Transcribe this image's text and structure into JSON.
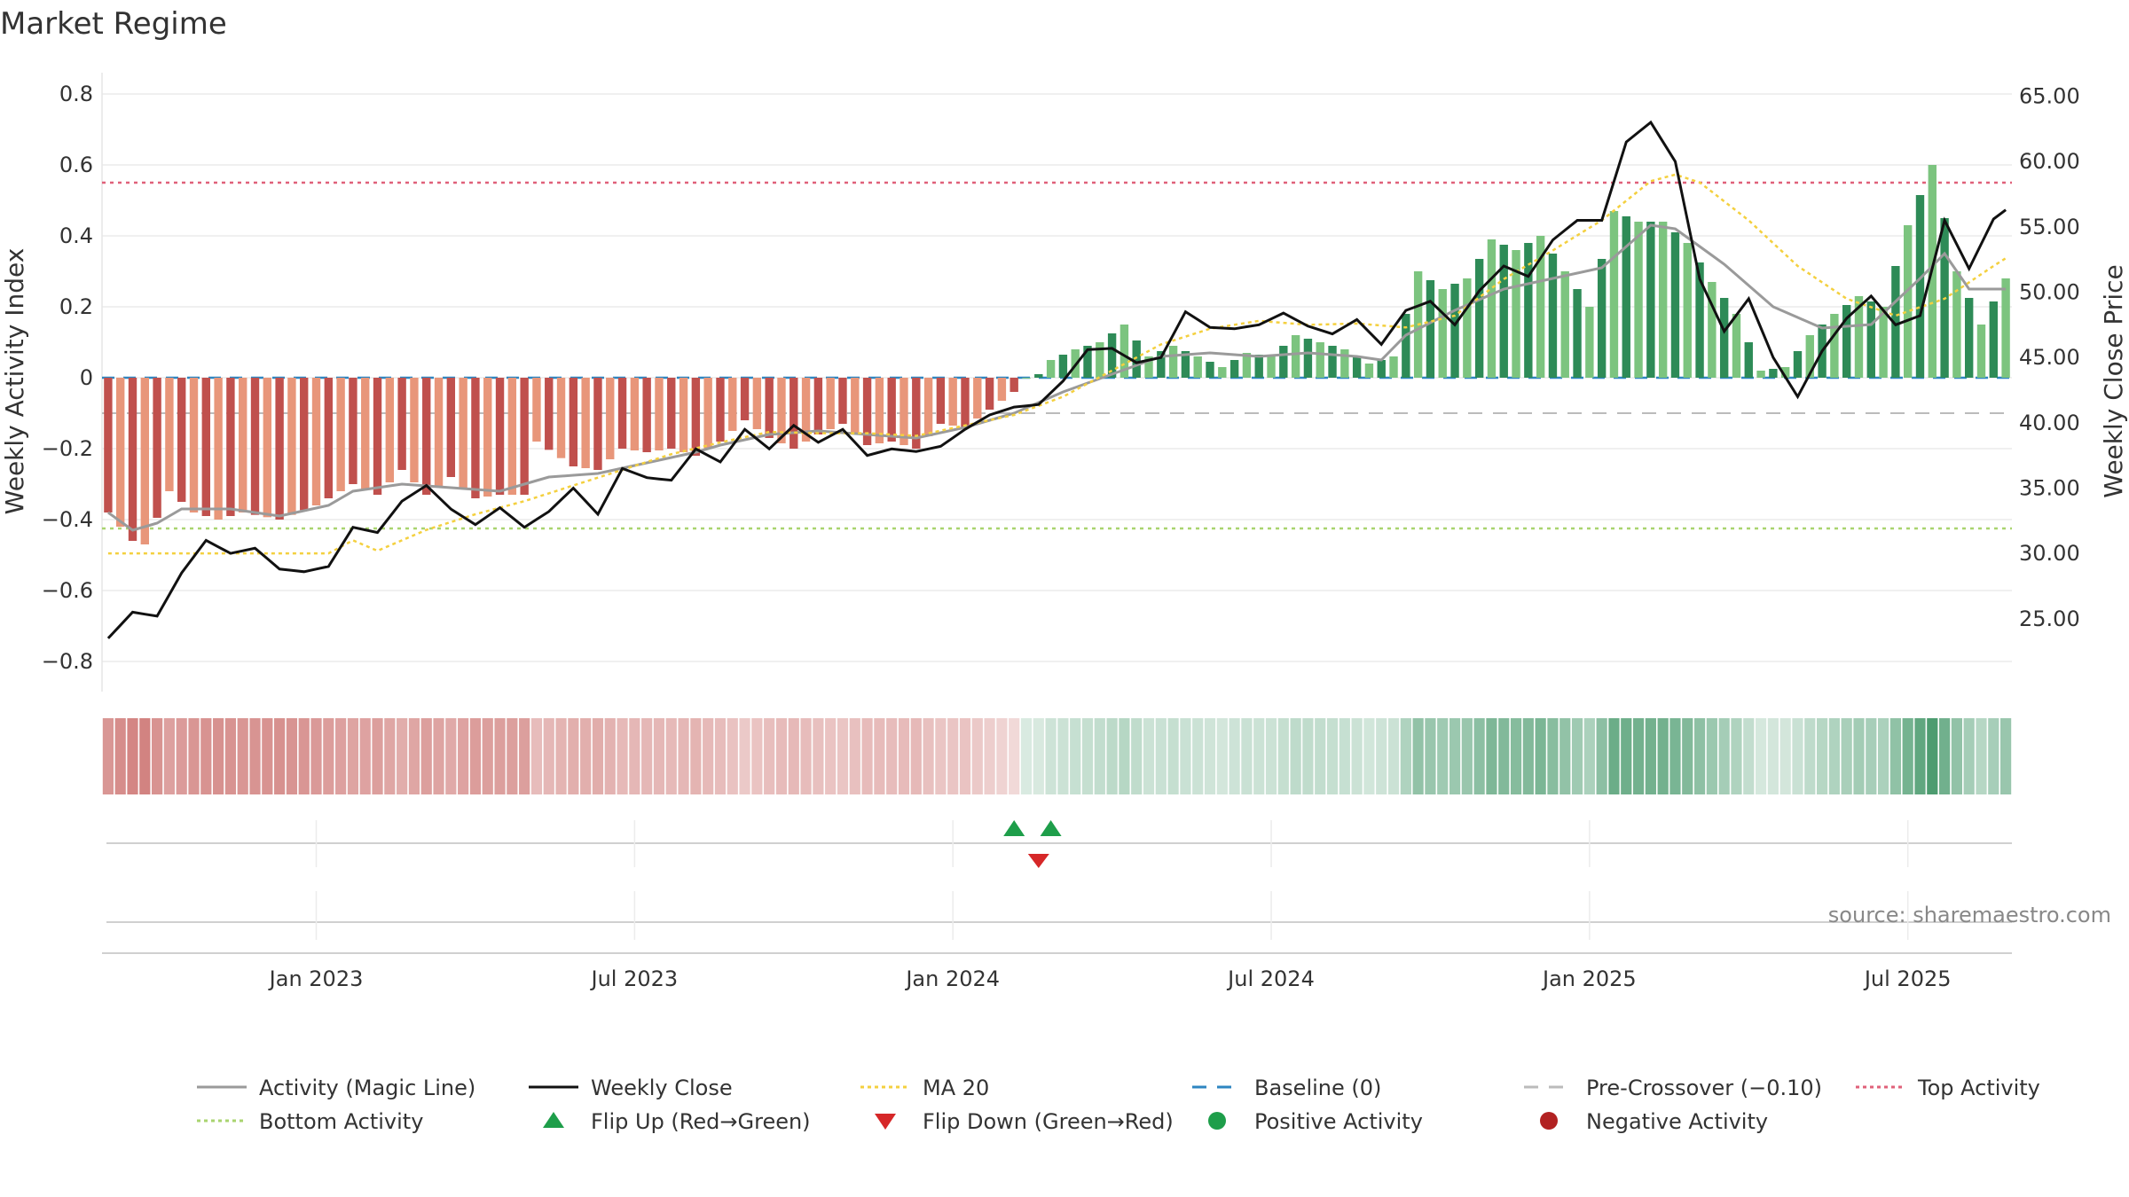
{
  "chart_data": {
    "type": "bar",
    "title": "Market Regime",
    "ylabel_left": "Weekly Activity Index",
    "ylabel_right": "Weekly Close Price",
    "source": "source: sharemaestro.com",
    "y_left_lim": [
      -0.86,
      0.86
    ],
    "y_right_lim": [
      20.1,
      66.8
    ],
    "y_left_ticks": [
      "0.8",
      "0.6",
      "0.4",
      "0.2",
      "0",
      "−0.2",
      "−0.4",
      "−0.6",
      "−0.8"
    ],
    "y_left_tick_values": [
      0.8,
      0.6,
      0.4,
      0.2,
      0,
      -0.2,
      -0.4,
      -0.6,
      -0.8
    ],
    "y_right_ticks": [
      "65.00",
      "60.00",
      "55.00",
      "50.00",
      "45.00",
      "40.00",
      "35.00",
      "30.00",
      "25.00"
    ],
    "y_right_tick_values": [
      65,
      60,
      55,
      50,
      45,
      40,
      35,
      30,
      25
    ],
    "x_ticks": [
      "Jan 2023",
      "Jul 2023",
      "Jan 2024",
      "Jul 2024",
      "Jan 2025",
      "Jul 2025"
    ],
    "x_tick_weeks": [
      17,
      43,
      69,
      95,
      121,
      147
    ],
    "weeks": 156,
    "flip_up_weeks": [
      74,
      77
    ],
    "flip_down_weeks": [
      76
    ],
    "reference_lines": {
      "baseline": 0,
      "pre_crossover": -0.1,
      "top_activity": 0.55,
      "bottom_activity": -0.425
    },
    "activity_anchors": [
      [
        0,
        -0.38
      ],
      [
        2,
        -0.46
      ],
      [
        3,
        -0.47
      ],
      [
        5,
        -0.32
      ],
      [
        7,
        -0.38
      ],
      [
        9,
        -0.4
      ],
      [
        11,
        -0.38
      ],
      [
        14,
        -0.4
      ],
      [
        17,
        -0.36
      ],
      [
        20,
        -0.3
      ],
      [
        22,
        -0.33
      ],
      [
        24,
        -0.26
      ],
      [
        26,
        -0.33
      ],
      [
        28,
        -0.28
      ],
      [
        30,
        -0.34
      ],
      [
        32,
        -0.33
      ],
      [
        34,
        -0.33
      ],
      [
        35,
        -0.18
      ],
      [
        38,
        -0.25
      ],
      [
        40,
        -0.26
      ],
      [
        42,
        -0.2
      ],
      [
        44,
        -0.21
      ],
      [
        46,
        -0.2
      ],
      [
        48,
        -0.22
      ],
      [
        50,
        -0.18
      ],
      [
        52,
        -0.12
      ],
      [
        54,
        -0.17
      ],
      [
        56,
        -0.2
      ],
      [
        58,
        -0.16
      ],
      [
        60,
        -0.13
      ],
      [
        62,
        -0.19
      ],
      [
        64,
        -0.18
      ],
      [
        66,
        -0.2
      ],
      [
        68,
        -0.13
      ],
      [
        70,
        -0.14
      ],
      [
        72,
        -0.09
      ],
      [
        74,
        -0.04
      ],
      [
        75,
        0.0
      ],
      [
        76,
        0.01
      ],
      [
        77,
        0.05
      ],
      [
        79,
        0.08
      ],
      [
        81,
        0.1
      ],
      [
        83,
        0.15
      ],
      [
        85,
        0.06
      ],
      [
        87,
        0.09
      ],
      [
        89,
        0.06
      ],
      [
        91,
        0.03
      ],
      [
        93,
        0.07
      ],
      [
        95,
        0.06
      ],
      [
        97,
        0.12
      ],
      [
        99,
        0.1
      ],
      [
        101,
        0.08
      ],
      [
        103,
        0.04
      ],
      [
        105,
        0.06
      ],
      [
        107,
        0.3
      ],
      [
        109,
        0.25
      ],
      [
        111,
        0.28
      ],
      [
        113,
        0.39
      ],
      [
        115,
        0.36
      ],
      [
        117,
        0.4
      ],
      [
        119,
        0.3
      ],
      [
        121,
        0.2
      ],
      [
        123,
        0.47
      ],
      [
        125,
        0.44
      ],
      [
        127,
        0.44
      ],
      [
        129,
        0.38
      ],
      [
        131,
        0.27
      ],
      [
        133,
        0.18
      ],
      [
        135,
        0.02
      ],
      [
        137,
        0.03
      ],
      [
        139,
        0.12
      ],
      [
        141,
        0.18
      ],
      [
        143,
        0.23
      ],
      [
        145,
        0.2
      ],
      [
        147,
        0.43
      ],
      [
        149,
        0.6
      ],
      [
        151,
        0.3
      ],
      [
        153,
        0.15
      ],
      [
        155,
        0.28
      ]
    ],
    "close_anchors": [
      [
        0,
        23.5
      ],
      [
        2,
        25.5
      ],
      [
        4,
        25.2
      ],
      [
        6,
        28.5
      ],
      [
        8,
        31
      ],
      [
        10,
        30
      ],
      [
        12,
        30.4
      ],
      [
        14,
        28.8
      ],
      [
        16,
        28.6
      ],
      [
        18,
        29
      ],
      [
        20,
        32
      ],
      [
        22,
        31.6
      ],
      [
        24,
        34
      ],
      [
        26,
        35.2
      ],
      [
        28,
        33.4
      ],
      [
        30,
        32.2
      ],
      [
        32,
        33.5
      ],
      [
        34,
        32
      ],
      [
        36,
        33.2
      ],
      [
        38,
        35
      ],
      [
        40,
        33
      ],
      [
        42,
        36.5
      ],
      [
        44,
        35.8
      ],
      [
        46,
        35.6
      ],
      [
        48,
        38
      ],
      [
        50,
        37
      ],
      [
        52,
        39.5
      ],
      [
        54,
        38
      ],
      [
        56,
        39.8
      ],
      [
        58,
        38.5
      ],
      [
        60,
        39.5
      ],
      [
        62,
        37.5
      ],
      [
        64,
        38
      ],
      [
        66,
        37.8
      ],
      [
        68,
        38.2
      ],
      [
        70,
        39.5
      ],
      [
        72,
        40.6
      ],
      [
        74,
        41.2
      ],
      [
        76,
        41.4
      ],
      [
        78,
        43.2
      ],
      [
        80,
        45.6
      ],
      [
        82,
        45.7
      ],
      [
        84,
        44.6
      ],
      [
        86,
        45
      ],
      [
        88,
        48.5
      ],
      [
        90,
        47.3
      ],
      [
        92,
        47.2
      ],
      [
        94,
        47.5
      ],
      [
        96,
        48.4
      ],
      [
        98,
        47.4
      ],
      [
        100,
        46.8
      ],
      [
        102,
        47.9
      ],
      [
        104,
        46
      ],
      [
        106,
        48.6
      ],
      [
        108,
        49.3
      ],
      [
        110,
        47.5
      ],
      [
        112,
        50.1
      ],
      [
        114,
        52
      ],
      [
        116,
        51.2
      ],
      [
        118,
        54
      ],
      [
        120,
        55.5
      ],
      [
        122,
        55.5
      ],
      [
        124,
        61.5
      ],
      [
        126,
        63
      ],
      [
        128,
        60
      ],
      [
        130,
        51
      ],
      [
        132,
        47
      ],
      [
        134,
        49.5
      ],
      [
        136,
        45
      ],
      [
        138,
        42
      ],
      [
        140,
        45.5
      ],
      [
        142,
        48
      ],
      [
        144,
        49.7
      ],
      [
        146,
        47.5
      ],
      [
        148,
        48.2
      ],
      [
        150,
        55.5
      ],
      [
        152,
        51.8
      ],
      [
        154,
        55.6
      ],
      [
        155,
        56.3
      ]
    ],
    "ma20_anchors": [
      [
        0,
        30
      ],
      [
        18,
        30
      ],
      [
        20,
        31
      ],
      [
        22,
        30.2
      ],
      [
        26,
        31.8
      ],
      [
        30,
        33
      ],
      [
        34,
        34
      ],
      [
        38,
        35.2
      ],
      [
        42,
        36.4
      ],
      [
        46,
        37.6
      ],
      [
        50,
        38.5
      ],
      [
        54,
        39.3
      ],
      [
        58,
        39.2
      ],
      [
        62,
        39.2
      ],
      [
        66,
        39
      ],
      [
        70,
        39.8
      ],
      [
        74,
        40.6
      ],
      [
        78,
        42
      ],
      [
        82,
        44
      ],
      [
        86,
        46
      ],
      [
        90,
        47.2
      ],
      [
        94,
        47.8
      ],
      [
        98,
        47.5
      ],
      [
        102,
        47.6
      ],
      [
        106,
        47.3
      ],
      [
        110,
        48.2
      ],
      [
        114,
        51
      ],
      [
        118,
        53.2
      ],
      [
        122,
        55.5
      ],
      [
        126,
        58.5
      ],
      [
        128,
        59
      ],
      [
        130,
        58.4
      ],
      [
        134,
        55.5
      ],
      [
        138,
        52
      ],
      [
        142,
        49.5
      ],
      [
        146,
        48.2
      ],
      [
        150,
        49.5
      ],
      [
        154,
        52
      ],
      [
        155,
        52.6
      ]
    ],
    "magic_anchors": [
      [
        0,
        -0.38
      ],
      [
        2,
        -0.43
      ],
      [
        4,
        -0.41
      ],
      [
        6,
        -0.37
      ],
      [
        10,
        -0.37
      ],
      [
        14,
        -0.39
      ],
      [
        18,
        -0.36
      ],
      [
        20,
        -0.32
      ],
      [
        24,
        -0.3
      ],
      [
        28,
        -0.31
      ],
      [
        32,
        -0.32
      ],
      [
        34,
        -0.3
      ],
      [
        36,
        -0.28
      ],
      [
        40,
        -0.27
      ],
      [
        44,
        -0.24
      ],
      [
        48,
        -0.21
      ],
      [
        50,
        -0.19
      ],
      [
        54,
        -0.16
      ],
      [
        58,
        -0.15
      ],
      [
        62,
        -0.16
      ],
      [
        66,
        -0.17
      ],
      [
        70,
        -0.14
      ],
      [
        74,
        -0.1
      ],
      [
        78,
        -0.04
      ],
      [
        82,
        0.01
      ],
      [
        86,
        0.06
      ],
      [
        90,
        0.07
      ],
      [
        94,
        0.06
      ],
      [
        98,
        0.07
      ],
      [
        102,
        0.06
      ],
      [
        104,
        0.05
      ],
      [
        106,
        0.12
      ],
      [
        110,
        0.19
      ],
      [
        114,
        0.25
      ],
      [
        118,
        0.28
      ],
      [
        122,
        0.31
      ],
      [
        126,
        0.43
      ],
      [
        128,
        0.42
      ],
      [
        132,
        0.32
      ],
      [
        136,
        0.2
      ],
      [
        140,
        0.14
      ],
      [
        144,
        0.15
      ],
      [
        148,
        0.28
      ],
      [
        150,
        0.35
      ],
      [
        152,
        0.25
      ],
      [
        155,
        0.25
      ]
    ],
    "bottom_strip": {
      "description_colors": {
        "red": "#b22222",
        "green": "#1e8449"
      }
    }
  },
  "legend": {
    "items": [
      {
        "label": "Activity (Magic Line)",
        "kind": "line",
        "color": "#9a9a9a",
        "dash": "solid"
      },
      {
        "label": "Weekly Close",
        "kind": "line",
        "color": "#111111",
        "dash": "solid"
      },
      {
        "label": "MA 20",
        "kind": "line",
        "color": "#f4d03f",
        "dash": "dotted"
      },
      {
        "label": "Baseline (0)",
        "kind": "line",
        "color": "#2e86c1",
        "dash": "dashed"
      },
      {
        "label": "Pre-Crossover (−0.10)",
        "kind": "line",
        "color": "#bbbbbb",
        "dash": "dashed"
      },
      {
        "label": "Top Activity",
        "kind": "line",
        "color": "#e0617a",
        "dash": "dotted"
      },
      {
        "label": "Bottom Activity",
        "kind": "line",
        "color": "#a9d46f",
        "dash": "dotted"
      },
      {
        "label": "Flip Up (Red→Green)",
        "kind": "triangle-up",
        "color": "#1e9e4a"
      },
      {
        "label": "Flip Down (Green→Red)",
        "kind": "triangle-down",
        "color": "#d62728"
      },
      {
        "label": "Positive Activity",
        "kind": "circle",
        "color": "#1e9e4a"
      },
      {
        "label": "Negative Activity",
        "kind": "circle",
        "color": "#b22222"
      }
    ]
  },
  "colors": {
    "neg_dark": "#c0504d",
    "neg_light": "#e8967a",
    "pos_dark": "#2e8b57",
    "pos_light": "#7cc47f",
    "grid": "#ececec",
    "magic": "#9a9a9a",
    "close": "#111111",
    "ma20": "#f4d03f",
    "baseline": "#2e86c1",
    "pre": "#bbbbbb",
    "top": "#e0617a",
    "bottom": "#a9d46f"
  }
}
